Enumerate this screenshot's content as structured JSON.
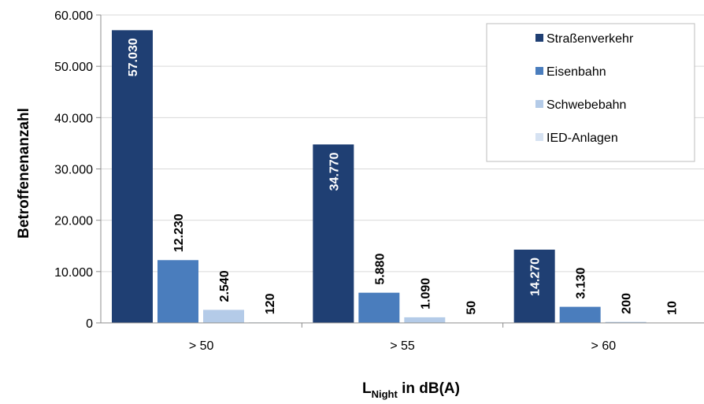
{
  "chart_data": {
    "type": "bar",
    "categories": [
      "> 50",
      "> 55",
      "> 60"
    ],
    "series": [
      {
        "name": "Straßenverkehr",
        "values": [
          57030,
          34770,
          14270
        ],
        "labels": [
          "57.030",
          "34.770",
          "14.270"
        ],
        "color": "#1f3f73"
      },
      {
        "name": "Eisenbahn",
        "values": [
          12230,
          5880,
          3130
        ],
        "labels": [
          "12.230",
          "5.880",
          "3.130"
        ],
        "color": "#4a7dbd"
      },
      {
        "name": "Schwebebahn",
        "values": [
          2540,
          1090,
          200
        ],
        "labels": [
          "2.540",
          "1.090",
          "200"
        ],
        "color": "#b4cbe8"
      },
      {
        "name": "IED-Anlagen",
        "values": [
          120,
          50,
          10
        ],
        "labels": [
          "120",
          "50",
          "10"
        ],
        "color": "#d6e2f2"
      }
    ],
    "ylim": [
      0,
      60000
    ],
    "yticks": [
      0,
      10000,
      20000,
      30000,
      40000,
      50000,
      60000
    ],
    "ytick_labels": [
      "0",
      "10.000",
      "20.000",
      "30.000",
      "40.000",
      "50.000",
      "60.000"
    ],
    "ylabel": "Betroffenenanzahl",
    "xlabel": {
      "main": "L",
      "subscript": "Night",
      "rest": " in dB(A)"
    },
    "grid": true,
    "legend_position": "top-right"
  }
}
